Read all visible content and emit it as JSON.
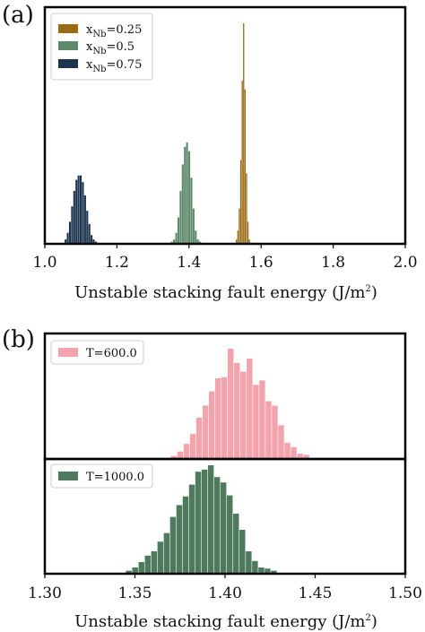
{
  "chart_data": [
    {
      "panel": "(a)",
      "type": "bar",
      "xlabel": "Unstable stacking fault energy (J/m",
      "xlabel_sup": "2",
      "xlabel_end": ")",
      "xlim": [
        1.0,
        2.0
      ],
      "xticks": [
        "1.0",
        "1.2",
        "1.4",
        "1.6",
        "1.8",
        "2.0"
      ],
      "yticks_shown": false,
      "legend_position": "top-left",
      "series": [
        {
          "name_main": "x",
          "name_sub": "Nb",
          "name_rest": "=0.25",
          "color": "#9a6b14",
          "bins": [
            1.53,
            1.534,
            1.538,
            1.542,
            1.546,
            1.55,
            1.554,
            1.558,
            1.562,
            1.566
          ],
          "values": [
            0.02,
            0.06,
            0.16,
            0.38,
            0.74,
            1.0,
            0.7,
            0.32,
            0.1,
            0.02
          ]
        },
        {
          "name_main": "x",
          "name_sub": "Nb",
          "name_rest": "=0.5",
          "color": "#5d8a6a",
          "bins": [
            1.35,
            1.356,
            1.362,
            1.368,
            1.374,
            1.38,
            1.386,
            1.392,
            1.398,
            1.404,
            1.41,
            1.416,
            1.422,
            1.428
          ],
          "values": [
            0.01,
            0.02,
            0.05,
            0.12,
            0.24,
            0.36,
            0.44,
            0.46,
            0.42,
            0.3,
            0.16,
            0.06,
            0.02,
            0.01
          ]
        },
        {
          "name_main": "x",
          "name_sub": "Nb",
          "name_rest": "=0.75",
          "color": "#1d3450",
          "bins": [
            1.055,
            1.061,
            1.067,
            1.073,
            1.079,
            1.085,
            1.091,
            1.097,
            1.103,
            1.109,
            1.115,
            1.121,
            1.127,
            1.133,
            1.139
          ],
          "values": [
            0.02,
            0.05,
            0.1,
            0.17,
            0.24,
            0.29,
            0.31,
            0.31,
            0.28,
            0.22,
            0.15,
            0.09,
            0.04,
            0.02,
            0.01
          ]
        }
      ]
    },
    {
      "panel": "(b)",
      "type": "bar",
      "xlabel": "Unstable stacking fault energy (J/m",
      "xlabel_sup": "2",
      "xlabel_end": ")",
      "xlim": [
        1.3,
        1.5
      ],
      "xticks": [
        "1.30",
        "1.35",
        "1.40",
        "1.45",
        "1.50"
      ],
      "yticks_shown": false,
      "legend_position": "top-left",
      "subplots": [
        {
          "name": "T=600.0",
          "color": "#f2a3ac",
          "bin_start": 1.37,
          "bin_width": 0.0035,
          "values": [
            0.02,
            0.06,
            0.13,
            0.22,
            0.37,
            0.48,
            0.61,
            0.73,
            0.74,
            1.0,
            0.87,
            0.79,
            0.91,
            0.67,
            0.71,
            0.52,
            0.48,
            0.3,
            0.14,
            0.1,
            0.04,
            0.03
          ]
        },
        {
          "name": "T=1000.0",
          "color": "#4f7a5e",
          "bin_start": 1.345,
          "bin_width": 0.0035,
          "values": [
            0.02,
            0.05,
            0.1,
            0.16,
            0.2,
            0.29,
            0.37,
            0.52,
            0.63,
            0.71,
            0.82,
            0.94,
            0.96,
            1.0,
            0.89,
            0.84,
            0.72,
            0.55,
            0.4,
            0.2,
            0.11,
            0.05,
            0.04,
            0.02
          ]
        }
      ]
    }
  ]
}
